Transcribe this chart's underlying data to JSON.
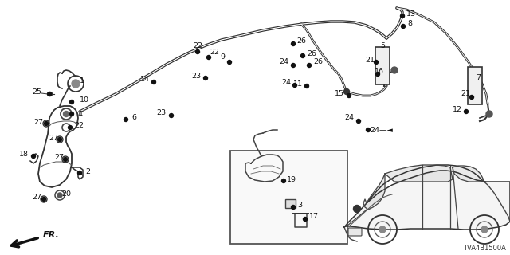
{
  "bg_color": "#ffffff",
  "diagram_code": "TVA4B1500A",
  "figsize": [
    6.4,
    3.2
  ],
  "dpi": 100
}
